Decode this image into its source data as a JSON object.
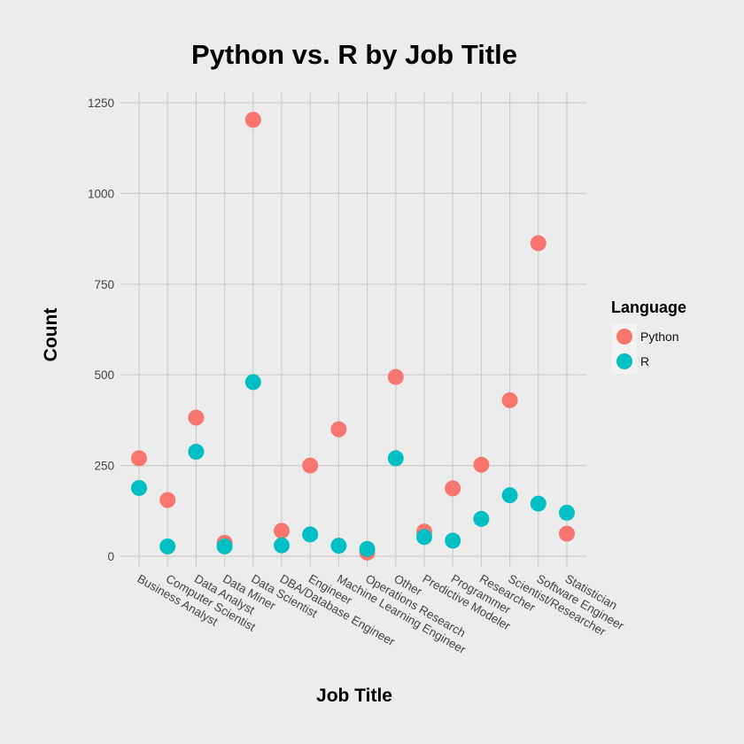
{
  "chart_data": {
    "type": "scatter",
    "title": "Python vs. R by Job Title",
    "xlabel": "Job Title",
    "ylabel": "Count",
    "ylim": [
      0,
      1250
    ],
    "yticks": [
      0,
      250,
      500,
      750,
      1000,
      1250
    ],
    "grid": true,
    "legend": {
      "title": "Language",
      "placement": "right"
    },
    "categories": [
      "Business Analyst",
      "Computer Scientist",
      "Data Analyst",
      "Data Miner",
      "Data Scientist",
      "DBA/Database Engineer",
      "Engineer",
      "Machine Learning Engineer",
      "Operations Research",
      "Other",
      "Predictive Modeler",
      "Programmer",
      "Researcher",
      "Scientist/Researcher",
      "Software Engineer",
      "Statistician"
    ],
    "series": [
      {
        "name": "Python",
        "color": "#f8766d",
        "values": [
          270,
          155,
          382,
          37,
          1203,
          70,
          250,
          350,
          10,
          494,
          68,
          187,
          252,
          430,
          863,
          62
        ]
      },
      {
        "name": "R",
        "color": "#00bfc4",
        "values": [
          188,
          27,
          288,
          27,
          480,
          30,
          60,
          29,
          20,
          270,
          53,
          43,
          103,
          168,
          145,
          120
        ]
      }
    ]
  }
}
